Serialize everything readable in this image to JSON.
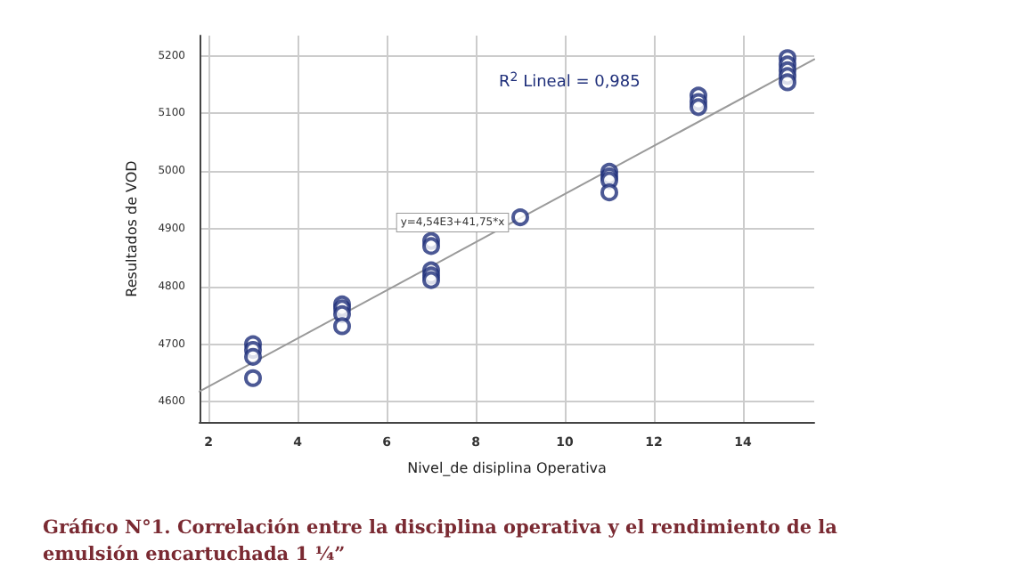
{
  "chart_data": {
    "type": "scatter",
    "title": "Gráfico N°1. Correlación entre la disciplina operativa y el rendimiento de la emulsión encartuchada 1 ¼”",
    "xlabel": "Nivel_de disiplina Operativa",
    "ylabel": "Resultados de VOD",
    "series": [
      {
        "color": "#1f2f7a",
        "marker": "circle",
        "x": [
          3,
          3,
          3,
          3,
          5,
          5,
          5,
          5,
          7,
          7,
          7,
          7,
          7,
          9,
          11,
          11,
          11,
          11,
          13,
          13,
          13,
          15,
          15,
          15,
          15,
          15
        ],
        "values": [
          4700,
          4690,
          4678,
          4641,
          4769,
          4762,
          4752,
          4731,
          4879,
          4870,
          4828,
          4819,
          4811,
          4920,
          4999,
          4991,
          4984,
          4963,
          5131,
          5120,
          5111,
          5196,
          5185,
          5175,
          5165,
          5154
        ]
      },
      {
        "type": "line",
        "color": "#9a9a9a",
        "marker": "none",
        "x": [
          1.8,
          15.6
        ],
        "values": [
          4618,
          5194
        ]
      }
    ],
    "annotations": [
      "R$^{2}$ Lineal = 0,985",
      {
        "text": "y=4,54E3+41,75*x",
        "x": 9,
        "y": 4920
      }
    ],
    "xlim": [
      1.8,
      15.6
    ],
    "xticks": [
      2,
      4,
      6,
      8,
      10,
      12,
      14
    ],
    "ylim": [
      4565,
      5235
    ],
    "yticks": [
      4600,
      4700,
      4800,
      4900,
      5000,
      5100,
      5200
    ],
    "grid": true
  }
}
